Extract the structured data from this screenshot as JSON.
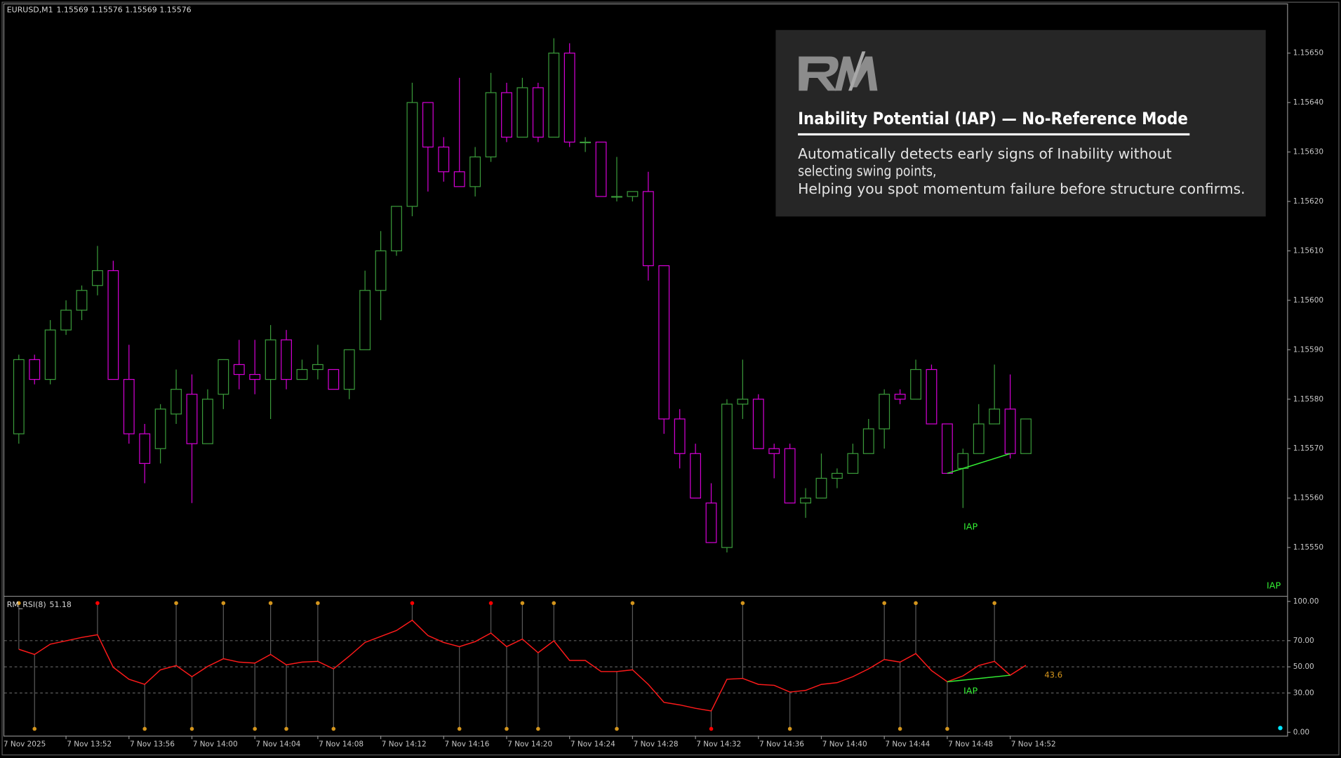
{
  "chart_data": {
    "type": "candlestick",
    "title": "EURUSD,M1",
    "x_start_label": "7 Nov 2025",
    "categories": [
      null,
      null,
      null,
      "7 Nov 13:52",
      null,
      null,
      null,
      "7 Nov 13:56",
      null,
      null,
      null,
      "7 Nov 14:00",
      null,
      null,
      null,
      "7 Nov 14:04",
      null,
      null,
      null,
      "7 Nov 14:08",
      null,
      null,
      null,
      "7 Nov 14:12",
      null,
      null,
      null,
      "7 Nov 14:16",
      null,
      null,
      null,
      "7 Nov 14:20",
      null,
      null,
      null,
      "7 Nov 14:24",
      null,
      null,
      null,
      "7 Nov 14:28",
      null,
      null,
      null,
      "7 Nov 14:32",
      null,
      null,
      null,
      "7 Nov 14:36",
      null,
      null,
      null,
      "7 Nov 14:40",
      null,
      null,
      null,
      "7 Nov 14:44",
      null,
      null,
      null,
      "7 Nov 14:48",
      null,
      null,
      null,
      "7 Nov 14:52",
      null
    ],
    "open": [
      1.15573,
      1.15588,
      1.15584,
      1.15594,
      1.15598,
      1.15603,
      1.15606,
      1.15584,
      1.15573,
      1.1557,
      1.15577,
      1.15581,
      1.15571,
      1.15581,
      1.15587,
      1.15585,
      1.15584,
      1.15592,
      1.15584,
      1.15586,
      1.15586,
      1.15582,
      1.1559,
      1.15602,
      1.1561,
      1.15619,
      1.1564,
      1.15631,
      1.15626,
      1.15623,
      1.15629,
      1.15642,
      1.15633,
      1.15643,
      1.15633,
      1.1565,
      1.15632,
      1.15632,
      1.15621,
      1.15621,
      1.15622,
      1.15607,
      1.15576,
      1.15569,
      1.15559,
      1.1555,
      1.15579,
      1.1558,
      1.1557,
      1.1557,
      1.15559,
      1.1556,
      1.15564,
      1.15565,
      1.15569,
      1.15574,
      1.15581,
      1.1558,
      1.15586,
      1.15575,
      1.15566,
      1.15569,
      1.15575,
      1.15578,
      1.15569
    ],
    "high": [
      1.15589,
      1.15589,
      1.15596,
      1.156,
      1.15603,
      1.15611,
      1.15608,
      1.15591,
      1.15575,
      1.15579,
      1.15586,
      1.15585,
      1.15582,
      1.15588,
      1.15592,
      1.15592,
      1.15595,
      1.15594,
      1.15588,
      1.15591,
      1.15586,
      1.1559,
      1.15606,
      1.15614,
      1.15619,
      1.15644,
      1.1564,
      1.15633,
      1.15645,
      1.15631,
      1.15646,
      1.15644,
      1.15645,
      1.15644,
      1.15653,
      1.15652,
      1.15633,
      1.15632,
      1.15629,
      1.15622,
      1.15626,
      1.15607,
      1.15578,
      1.15571,
      1.15563,
      1.1558,
      1.15588,
      1.15581,
      1.15571,
      1.15571,
      1.15562,
      1.15569,
      1.15566,
      1.15571,
      1.15576,
      1.15582,
      1.15582,
      1.15588,
      1.15587,
      1.15575,
      1.1557,
      1.15579,
      1.15587,
      1.15585,
      1.15576
    ],
    "low": [
      1.15571,
      1.15583,
      1.15583,
      1.15593,
      1.15596,
      1.15601,
      1.15584,
      1.15571,
      1.15563,
      1.15567,
      1.15575,
      1.15559,
      1.15571,
      1.15578,
      1.15582,
      1.15581,
      1.15576,
      1.15582,
      1.15584,
      1.15584,
      1.15582,
      1.1558,
      1.1559,
      1.15596,
      1.15609,
      1.15617,
      1.15622,
      1.15624,
      1.15623,
      1.15621,
      1.15628,
      1.15632,
      1.15633,
      1.15632,
      1.15633,
      1.15631,
      1.1563,
      1.15621,
      1.1562,
      1.1562,
      1.15604,
      1.15573,
      1.15566,
      1.1556,
      1.15551,
      1.15549,
      1.15576,
      1.1557,
      1.15564,
      1.15559,
      1.15556,
      1.1556,
      1.15562,
      1.15565,
      1.15569,
      1.1557,
      1.15579,
      1.1558,
      1.15575,
      1.15565,
      1.15558,
      1.15569,
      1.15575,
      1.15568,
      1.15569
    ],
    "close": [
      1.15588,
      1.15584,
      1.15594,
      1.15598,
      1.15602,
      1.15606,
      1.15584,
      1.15573,
      1.15567,
      1.15578,
      1.15582,
      1.15571,
      1.1558,
      1.15588,
      1.15585,
      1.15584,
      1.15592,
      1.15584,
      1.15586,
      1.15587,
      1.15582,
      1.1559,
      1.15602,
      1.1561,
      1.15619,
      1.1564,
      1.15631,
      1.15626,
      1.15623,
      1.15629,
      1.15642,
      1.15633,
      1.15643,
      1.15633,
      1.1565,
      1.15632,
      1.15632,
      1.15621,
      1.15621,
      1.15622,
      1.15607,
      1.15576,
      1.15569,
      1.1556,
      1.15551,
      1.15579,
      1.1558,
      1.1557,
      1.15569,
      1.15559,
      1.1556,
      1.15564,
      1.15565,
      1.15569,
      1.15574,
      1.15581,
      1.1558,
      1.15586,
      1.15575,
      1.15565,
      1.15569,
      1.15575,
      1.15578,
      1.15569,
      1.15576
    ],
    "up_color": "#3a9a3a",
    "down_color": "#d400d4",
    "ylim": [
      1.1554,
      1.1566
    ],
    "yticks": [
      {
        "value": 1.1555,
        "label": "1.15550"
      },
      {
        "value": 1.1556,
        "label": "1.15560"
      },
      {
        "value": 1.1557,
        "label": "1.15570"
      },
      {
        "value": 1.1558,
        "label": "1.15580"
      },
      {
        "value": 1.1559,
        "label": "1.15590"
      },
      {
        "value": 1.156,
        "label": "1.15600"
      },
      {
        "value": 1.1561,
        "label": "1.15610"
      },
      {
        "value": 1.1562,
        "label": "1.15620"
      },
      {
        "value": 1.1563,
        "label": "1.15630"
      },
      {
        "value": 1.1564,
        "label": "1.15640"
      },
      {
        "value": 1.1565,
        "label": "1.15650"
      }
    ],
    "trendline": {
      "label": "IAP",
      "x": [
        59,
        63
      ],
      "y": [
        1.15565,
        1.15569
      ],
      "color": "#33ee33"
    },
    "signal_label": "IAP",
    "indicator": {
      "type": "line",
      "name": "RM_RSI(8)",
      "color": "#ff1a1a",
      "values": [
        63.4,
        59.5,
        67.3,
        69.9,
        72.5,
        74.5,
        49.7,
        40.5,
        36.6,
        47.7,
        51,
        42.5,
        50.3,
        56.2,
        53.6,
        52.9,
        59.5,
        51.6,
        53.6,
        54.2,
        48.4,
        58.2,
        68.6,
        73.2,
        77.8,
        85.6,
        73.9,
        68.6,
        65.4,
        69.3,
        75.8,
        65.4,
        71.2,
        60.8,
        69.9,
        54.9,
        54.9,
        46.4,
        46.4,
        47.7,
        36.6,
        22.9,
        20.9,
        18.3,
        16.3,
        40.5,
        41.2,
        36.6,
        35.9,
        30.7,
        32,
        36.6,
        37.9,
        42.5,
        48.4,
        55.6,
        53.6,
        60.1,
        47.1,
        38.6,
        43.1,
        51,
        54.2,
        43.6,
        51.18
      ],
      "ylim": [
        0,
        100
      ],
      "yticks": [
        {
          "value": 0,
          "label": "0.00"
        },
        {
          "value": 30,
          "label": "30.00"
        },
        {
          "value": 50,
          "label": "50.00"
        },
        {
          "value": 70,
          "label": "70.00"
        },
        {
          "value": 100,
          "label": "100.00"
        }
      ],
      "swing_highs": [
        {
          "index": 0,
          "color": "#d4951c"
        },
        {
          "index": 5,
          "color": "#ff0000"
        },
        {
          "index": 10,
          "color": "#d4951c"
        },
        {
          "index": 13,
          "color": "#d4951c"
        },
        {
          "index": 16,
          "color": "#d4951c"
        },
        {
          "index": 19,
          "color": "#d4951c"
        },
        {
          "index": 25,
          "color": "#ff0000"
        },
        {
          "index": 30,
          "color": "#ff0000"
        },
        {
          "index": 32,
          "color": "#d4951c"
        },
        {
          "index": 34,
          "color": "#d4951c"
        },
        {
          "index": 39,
          "color": "#d4951c"
        },
        {
          "index": 46,
          "color": "#d4951c"
        },
        {
          "index": 55,
          "color": "#d4951c"
        },
        {
          "index": 57,
          "color": "#d4951c"
        },
        {
          "index": 62,
          "color": "#d4951c"
        }
      ],
      "swing_lows": [
        {
          "index": 1,
          "color": "#d4951c"
        },
        {
          "index": 8,
          "color": "#d4951c"
        },
        {
          "index": 11,
          "color": "#d4951c"
        },
        {
          "index": 15,
          "color": "#d4951c"
        },
        {
          "index": 17,
          "color": "#d4951c"
        },
        {
          "index": 20,
          "color": "#d4951c"
        },
        {
          "index": 28,
          "color": "#d4951c"
        },
        {
          "index": 31,
          "color": "#d4951c"
        },
        {
          "index": 33,
          "color": "#d4951c"
        },
        {
          "index": 38,
          "color": "#d4951c"
        },
        {
          "index": 44,
          "color": "#ff0000"
        },
        {
          "index": 49,
          "color": "#d4951c"
        },
        {
          "index": 56,
          "color": "#d4951c"
        },
        {
          "index": 59,
          "color": "#d4951c"
        }
      ],
      "divergence": {
        "label": "IAP",
        "x": [
          59,
          63
        ],
        "y": [
          38.6,
          43.6
        ],
        "value_label": "43.6",
        "color": "#33ee33",
        "value_color": "#d4951c"
      }
    }
  },
  "info_box": {
    "title": "Inability Potential (IAP) — No-Reference Mode",
    "description": [
      "Automatically detects early signs of Inability without",
      "selecting swing points,",
      "Helping you spot momentum failure before structure confirms."
    ]
  }
}
